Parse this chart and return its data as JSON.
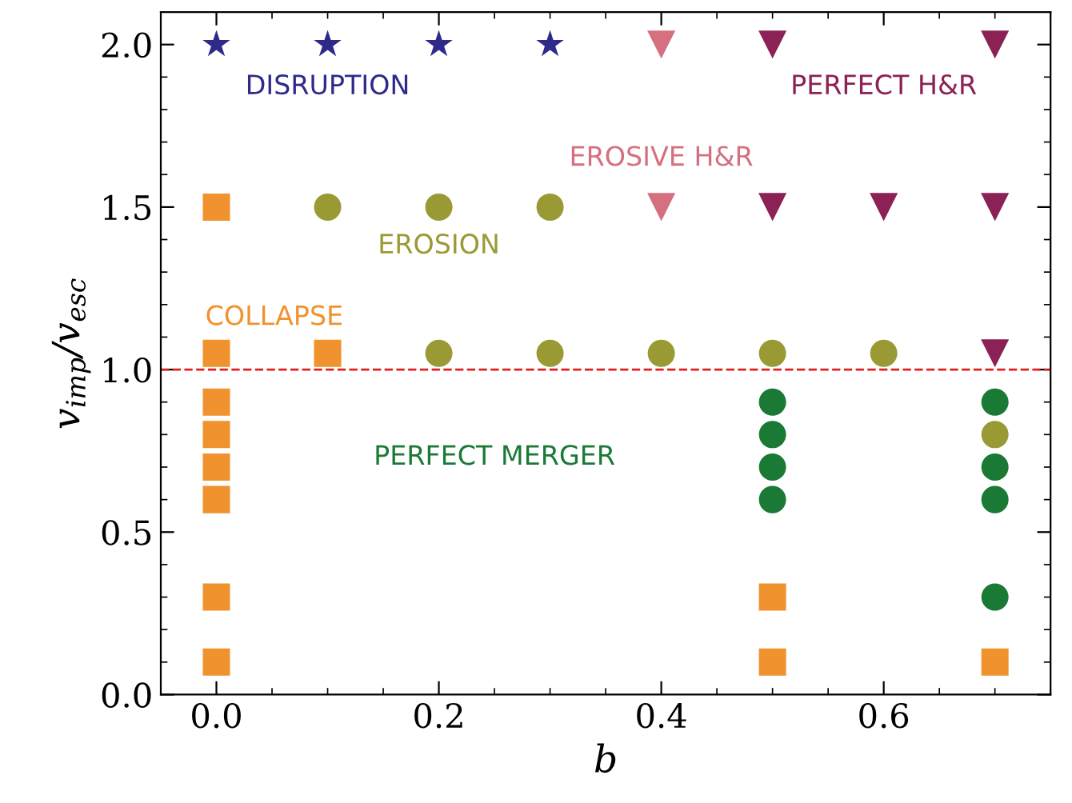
{
  "chart_data": {
    "type": "scatter",
    "xlabel": "b",
    "ylabel": "v$_{imp}$/v$_{esc}$",
    "xlim": [
      -0.05,
      0.75
    ],
    "ylim": [
      0,
      2.1
    ],
    "xticks": [
      {
        "value": 0,
        "label": "0.0"
      },
      {
        "value": 0.2,
        "label": "0.2"
      },
      {
        "value": 0.4,
        "label": "0.4"
      },
      {
        "value": 0.6,
        "label": "0.6"
      }
    ],
    "yticks": [
      {
        "value": 0,
        "label": "0.0"
      },
      {
        "value": 0.5,
        "label": "0.5"
      },
      {
        "value": 1,
        "label": "1.0"
      },
      {
        "value": 1.5,
        "label": "1.5"
      },
      {
        "value": 2,
        "label": "2.0"
      }
    ],
    "grid": false,
    "legend": false,
    "ref_lines": [
      {
        "axis": "y",
        "value": 1,
        "color": "#e0201c",
        "line_style": "dashed"
      }
    ],
    "series": [
      {
        "name": "DISRUPTION",
        "color": "#2e2a8a",
        "marker": "star",
        "x": [
          0,
          0.1,
          0.2,
          0.3
        ],
        "values": [
          2,
          2,
          2,
          2
        ]
      },
      {
        "name": "PERFECT H&R",
        "color": "#8c2155",
        "marker": "triangle",
        "x": [
          0.5,
          0.7,
          0.5,
          0.6,
          0.7,
          0.7
        ],
        "values": [
          2,
          2,
          1.5,
          1.5,
          1.5,
          1.05
        ]
      },
      {
        "name": "EROSIVE H&R",
        "color": "#d4707f",
        "marker": "triangle",
        "x": [
          0.4,
          0.4
        ],
        "values": [
          2,
          1.5
        ]
      },
      {
        "name": "EROSION",
        "color": "#9a9a35",
        "marker": "circle",
        "x": [
          0.1,
          0.2,
          0.3,
          0.2,
          0.3,
          0.4,
          0.5,
          0.6,
          0.7
        ],
        "values": [
          1.5,
          1.5,
          1.5,
          1.05,
          1.05,
          1.05,
          1.05,
          1.05,
          0.8
        ]
      },
      {
        "name": "COLLAPSE",
        "color": "#f0922e",
        "marker": "square",
        "x": [
          0,
          0,
          0.1,
          0,
          0,
          0,
          0,
          0,
          0,
          0.5,
          0.5,
          0.7
        ],
        "values": [
          1.5,
          1.05,
          1.05,
          0.9,
          0.8,
          0.7,
          0.6,
          0.3,
          0.1,
          0.3,
          0.1,
          0.1
        ]
      },
      {
        "name": "PERFECT MERGER",
        "color": "#1a7a35",
        "marker": "circle",
        "x": [
          0.5,
          0.5,
          0.5,
          0.5,
          0.7,
          0.7,
          0.7,
          0.7
        ],
        "values": [
          0.9,
          0.8,
          0.7,
          0.6,
          0.9,
          0.7,
          0.6,
          0.3
        ]
      }
    ]
  }
}
